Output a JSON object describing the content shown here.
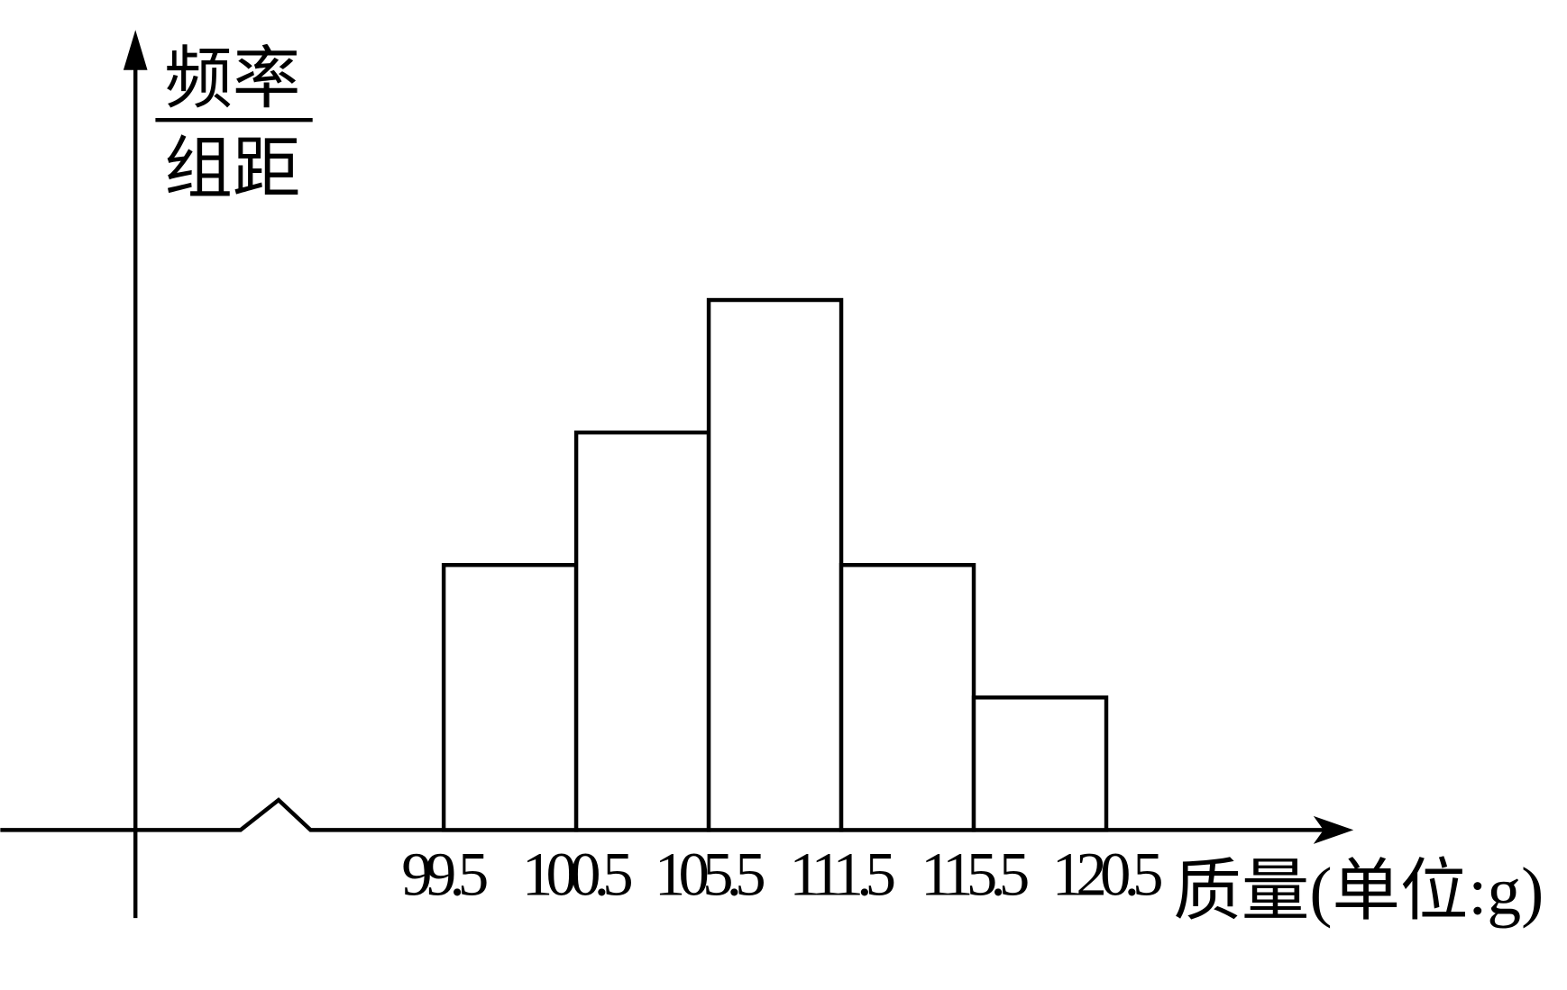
{
  "chart_data": {
    "type": "histogram",
    "ylabel_numerator": "频率",
    "ylabel_denominator": "组距",
    "xlabel": "质量(单位:g)",
    "bins": [
      "99.5",
      "100.5",
      "105.5",
      "111.5",
      "115.5",
      "120.5"
    ],
    "values": [
      2,
      3,
      4,
      2,
      1
    ],
    "ylim": [
      0,
      6
    ],
    "color": "#ffffff",
    "edgecolor": "#000000"
  }
}
